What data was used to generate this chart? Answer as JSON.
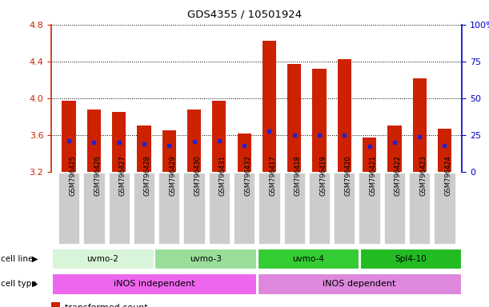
{
  "title": "GDS4355 / 10501924",
  "samples": [
    "GSM796425",
    "GSM796426",
    "GSM796427",
    "GSM796428",
    "GSM796429",
    "GSM796430",
    "GSM796431",
    "GSM796432",
    "GSM796417",
    "GSM796418",
    "GSM796419",
    "GSM796420",
    "GSM796421",
    "GSM796422",
    "GSM796423",
    "GSM796424"
  ],
  "transformed_counts": [
    3.97,
    3.88,
    3.85,
    3.7,
    3.65,
    3.88,
    3.97,
    3.62,
    4.62,
    4.37,
    4.32,
    4.42,
    3.57,
    3.7,
    4.22,
    3.67
  ],
  "percentile_values": [
    3.54,
    3.52,
    3.52,
    3.5,
    3.49,
    3.53,
    3.54,
    3.49,
    3.64,
    3.6,
    3.6,
    3.6,
    3.48,
    3.52,
    3.58,
    3.49
  ],
  "ymin": 3.2,
  "ymax": 4.8,
  "bar_color": "#cc2200",
  "blue_color": "#2222cc",
  "cell_lines": [
    {
      "label": "uvmo-2",
      "start": 0,
      "end": 4,
      "color": "#d9f5d9"
    },
    {
      "label": "uvmo-3",
      "start": 4,
      "end": 8,
      "color": "#99dd99"
    },
    {
      "label": "uvmo-4",
      "start": 8,
      "end": 12,
      "color": "#33cc33"
    },
    {
      "label": "Spl4-10",
      "start": 12,
      "end": 16,
      "color": "#22bb22"
    }
  ],
  "cell_types": [
    {
      "label": "iNOS independent",
      "start": 0,
      "end": 8,
      "color": "#ee66ee"
    },
    {
      "label": "iNOS dependent",
      "start": 8,
      "end": 16,
      "color": "#dd88dd"
    }
  ],
  "right_yticks": [
    0,
    25,
    50,
    75,
    100
  ],
  "right_yticklabels": [
    "0",
    "25",
    "50",
    "75",
    "100%"
  ],
  "left_yticks": [
    3.2,
    3.6,
    4.0,
    4.4,
    4.8
  ],
  "grid_values": [
    3.6,
    4.0,
    4.4,
    4.8
  ],
  "bar_width": 0.55,
  "bar_color_red": "#cc2200",
  "right_ylabel_color": "#0000cc",
  "left_ylabel_color": "#cc2200",
  "tick_label_bg": "#cccccc",
  "fig_width": 6.11,
  "fig_height": 3.84
}
